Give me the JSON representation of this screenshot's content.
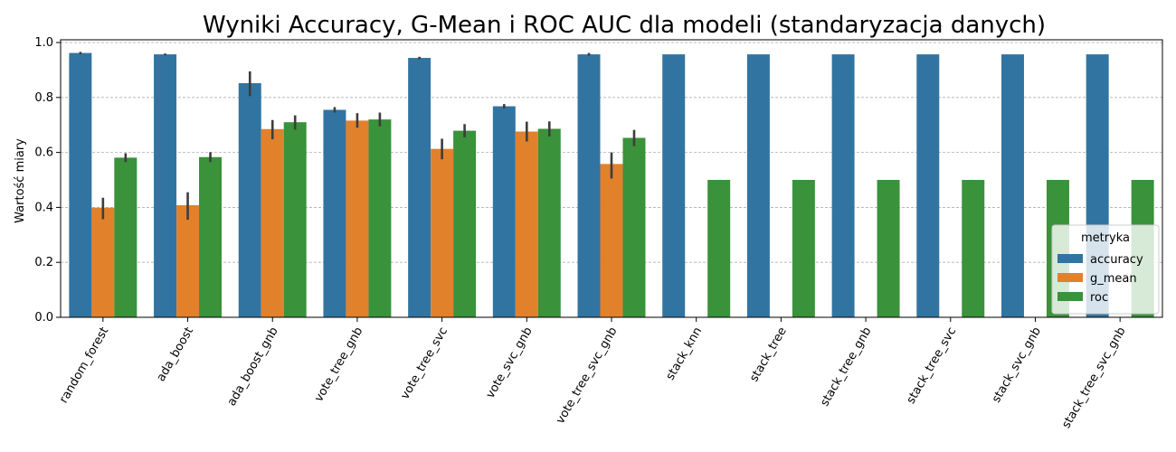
{
  "chart_data": {
    "type": "bar",
    "title": "Wyniki Accuracy, G-Mean i ROC AUC dla modeli (standaryzacja danych)",
    "xlabel": "",
    "ylabel": "Wartość miary",
    "ylim": [
      0,
      1.0
    ],
    "yticks": [
      "0.0",
      "0.2",
      "0.4",
      "0.6",
      "0.8",
      "1.0"
    ],
    "grid": "horizontal-dashed",
    "legend_title": "metryka",
    "legend_position": "lower-right",
    "categories": [
      "random_forest",
      "ada_boost",
      "ada_boost_gnb",
      "vote_tree_gnb",
      "vote_tree_svc",
      "vote_svc_gnb",
      "vote_tree_svc_gnb",
      "stack_knn",
      "stack_tree",
      "stack_tree_gnb",
      "stack_tree_svc",
      "stack_svc_gnb",
      "stack_tree_svc_gnb"
    ],
    "series": [
      {
        "name": "accuracy",
        "color": "#3274a1",
        "values": [
          0.962,
          0.957,
          0.852,
          0.755,
          0.944,
          0.768,
          0.957,
          0.957,
          0.957,
          0.957,
          0.957,
          0.957,
          0.957
        ],
        "err_low": [
          0.957,
          0.953,
          0.805,
          0.745,
          0.939,
          0.76,
          0.952,
          null,
          null,
          null,
          null,
          null,
          null
        ],
        "err_high": [
          0.966,
          0.96,
          0.895,
          0.765,
          0.948,
          0.776,
          0.962,
          null,
          null,
          null,
          null,
          null,
          null
        ]
      },
      {
        "name": "g_mean",
        "color": "#e1812c",
        "values": [
          0.399,
          0.408,
          0.685,
          0.716,
          0.613,
          0.676,
          0.558,
          0,
          0,
          0,
          0,
          0,
          0
        ],
        "err_low": [
          0.357,
          0.355,
          0.648,
          0.69,
          0.575,
          0.64,
          0.505,
          null,
          null,
          null,
          null,
          null,
          null
        ],
        "err_high": [
          0.435,
          0.455,
          0.718,
          0.743,
          0.65,
          0.712,
          0.6,
          null,
          null,
          null,
          null,
          null,
          null
        ]
      },
      {
        "name": "roc",
        "color": "#3a923a",
        "values": [
          0.581,
          0.583,
          0.71,
          0.72,
          0.679,
          0.686,
          0.653,
          0.5,
          0.5,
          0.5,
          0.5,
          0.5,
          0.5
        ],
        "err_low": [
          0.565,
          0.565,
          0.683,
          0.695,
          0.655,
          0.658,
          0.623,
          null,
          null,
          null,
          null,
          null,
          null
        ],
        "err_high": [
          0.597,
          0.601,
          0.735,
          0.745,
          0.703,
          0.713,
          0.682,
          null,
          null,
          null,
          null,
          null,
          null
        ]
      }
    ]
  }
}
